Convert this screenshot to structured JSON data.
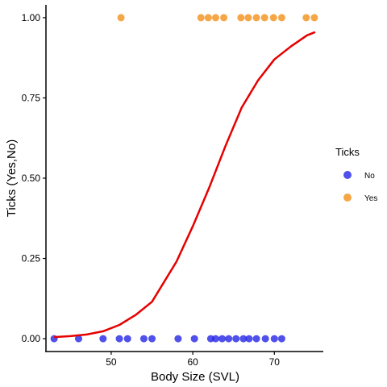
{
  "chart_data": {
    "type": "scatter",
    "xlabel": "Body Size (SVL)",
    "ylabel": "Ticks (Yes,No)",
    "xlim": [
      42,
      76
    ],
    "ylim": [
      -0.04,
      1.04
    ],
    "x_ticks": [
      50,
      60,
      70
    ],
    "y_ticks": [
      0.0,
      0.25,
      0.5,
      0.75,
      1.0
    ],
    "y_tick_labels": [
      "0.00",
      "0.25",
      "0.50",
      "0.75",
      "1.00"
    ],
    "grid": false,
    "legend": {
      "title": "Ticks",
      "placement": "right",
      "entries": [
        {
          "label": "No",
          "color": "#2424e6"
        },
        {
          "label": "Yes",
          "color": "#f39019"
        }
      ]
    },
    "series": [
      {
        "name": "No",
        "color": "#2424e6",
        "points": [
          [
            43.0,
            0
          ],
          [
            46.0,
            0
          ],
          [
            49.0,
            0
          ],
          [
            51.0,
            0
          ],
          [
            52.0,
            0
          ],
          [
            54.0,
            0
          ],
          [
            55.0,
            0
          ],
          [
            58.2,
            0
          ],
          [
            60.2,
            0
          ],
          [
            62.2,
            0
          ],
          [
            62.8,
            0
          ],
          [
            63.6,
            0
          ],
          [
            64.4,
            0
          ],
          [
            65.3,
            0
          ],
          [
            66.2,
            0
          ],
          [
            66.9,
            0
          ],
          [
            67.8,
            0
          ],
          [
            68.9,
            0
          ],
          [
            70.0,
            0
          ],
          [
            70.9,
            0
          ]
        ]
      },
      {
        "name": "Yes",
        "color": "#f39019",
        "points": [
          [
            51.2,
            1
          ],
          [
            61.0,
            1
          ],
          [
            61.9,
            1
          ],
          [
            62.8,
            1
          ],
          [
            63.8,
            1
          ],
          [
            65.9,
            1
          ],
          [
            66.8,
            1
          ],
          [
            67.8,
            1
          ],
          [
            68.8,
            1
          ],
          [
            69.9,
            1
          ],
          [
            70.9,
            1
          ],
          [
            73.9,
            1
          ],
          [
            74.9,
            1
          ]
        ]
      }
    ],
    "fit_line": {
      "type": "logistic",
      "color": "#e60000",
      "x": [
        43,
        45,
        47,
        49,
        51,
        53,
        55,
        58,
        60,
        62,
        64,
        66,
        68,
        70,
        72,
        74,
        75
      ],
      "y": [
        0.005,
        0.008,
        0.013,
        0.023,
        0.043,
        0.074,
        0.115,
        0.24,
        0.35,
        0.47,
        0.6,
        0.72,
        0.805,
        0.87,
        0.91,
        0.945,
        0.955
      ]
    }
  }
}
